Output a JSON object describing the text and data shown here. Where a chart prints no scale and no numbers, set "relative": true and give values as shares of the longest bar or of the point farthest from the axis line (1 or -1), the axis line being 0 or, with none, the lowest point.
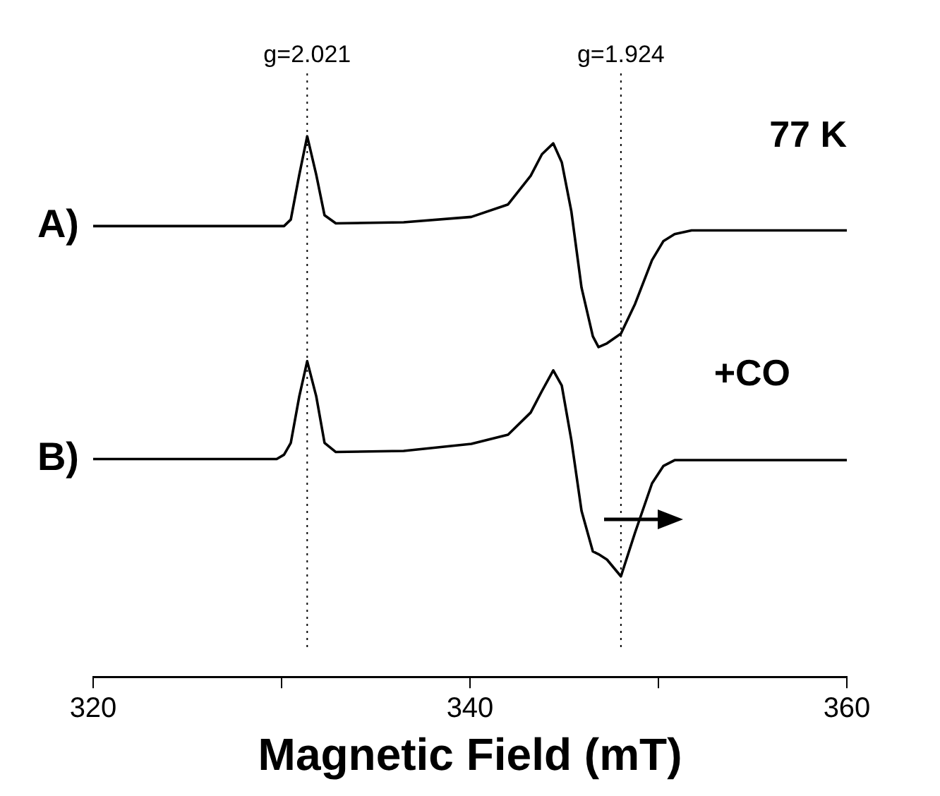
{
  "chart_data": {
    "type": "line",
    "relative": true,
    "xlabel": "Magnetic Field (mT)",
    "x": [
      320,
      329.74,
      330.13,
      330.49,
      330.94,
      331.36,
      331.84,
      332.28,
      332.88,
      336.48,
      340.07,
      342.02,
      343.22,
      343.82,
      344.42,
      344.87,
      345.38,
      345.92,
      346.52,
      346.82,
      347.27,
      348.01,
      348.76,
      349.66,
      350.26,
      350.86,
      351.76,
      360
    ],
    "series": [
      {
        "name": "A)",
        "color": "#000000",
        "values": [
          0.834,
          0.834,
          0.834,
          0.846,
          0.929,
          1.0,
          0.929,
          0.854,
          0.839,
          0.841,
          0.851,
          0.874,
          0.927,
          0.967,
          0.987,
          0.952,
          0.861,
          0.72,
          0.63,
          0.61,
          0.617,
          0.635,
          0.69,
          0.771,
          0.806,
          0.819,
          0.826,
          0.826
        ]
      },
      {
        "name": "B)",
        "color": "#000000",
        "values": [
          0.403,
          0.403,
          0.411,
          0.433,
          0.519,
          0.584,
          0.519,
          0.433,
          0.416,
          0.418,
          0.431,
          0.448,
          0.489,
          0.529,
          0.567,
          0.539,
          0.438,
          0.307,
          0.232,
          0.227,
          0.217,
          0.186,
          0.267,
          0.358,
          0.39,
          0.401,
          0.401,
          0.401
        ]
      }
    ],
    "xlim": [
      320,
      360
    ],
    "xticks": [
      320,
      {
        "value": 330,
        "label": null
      },
      340,
      {
        "value": 350,
        "label": null
      },
      360
    ],
    "ref_lines": [
      {
        "axis": "x",
        "value": 331.36,
        "line_style": "dotted"
      },
      {
        "axis": "x",
        "value": 348.01,
        "line_style": "dotted"
      }
    ],
    "annotations": [
      "g=2.021",
      "g=1.924",
      "77 K",
      "+CO"
    ],
    "grid": false,
    "legend": false,
    "marker": "none",
    "line_style": "solid"
  }
}
